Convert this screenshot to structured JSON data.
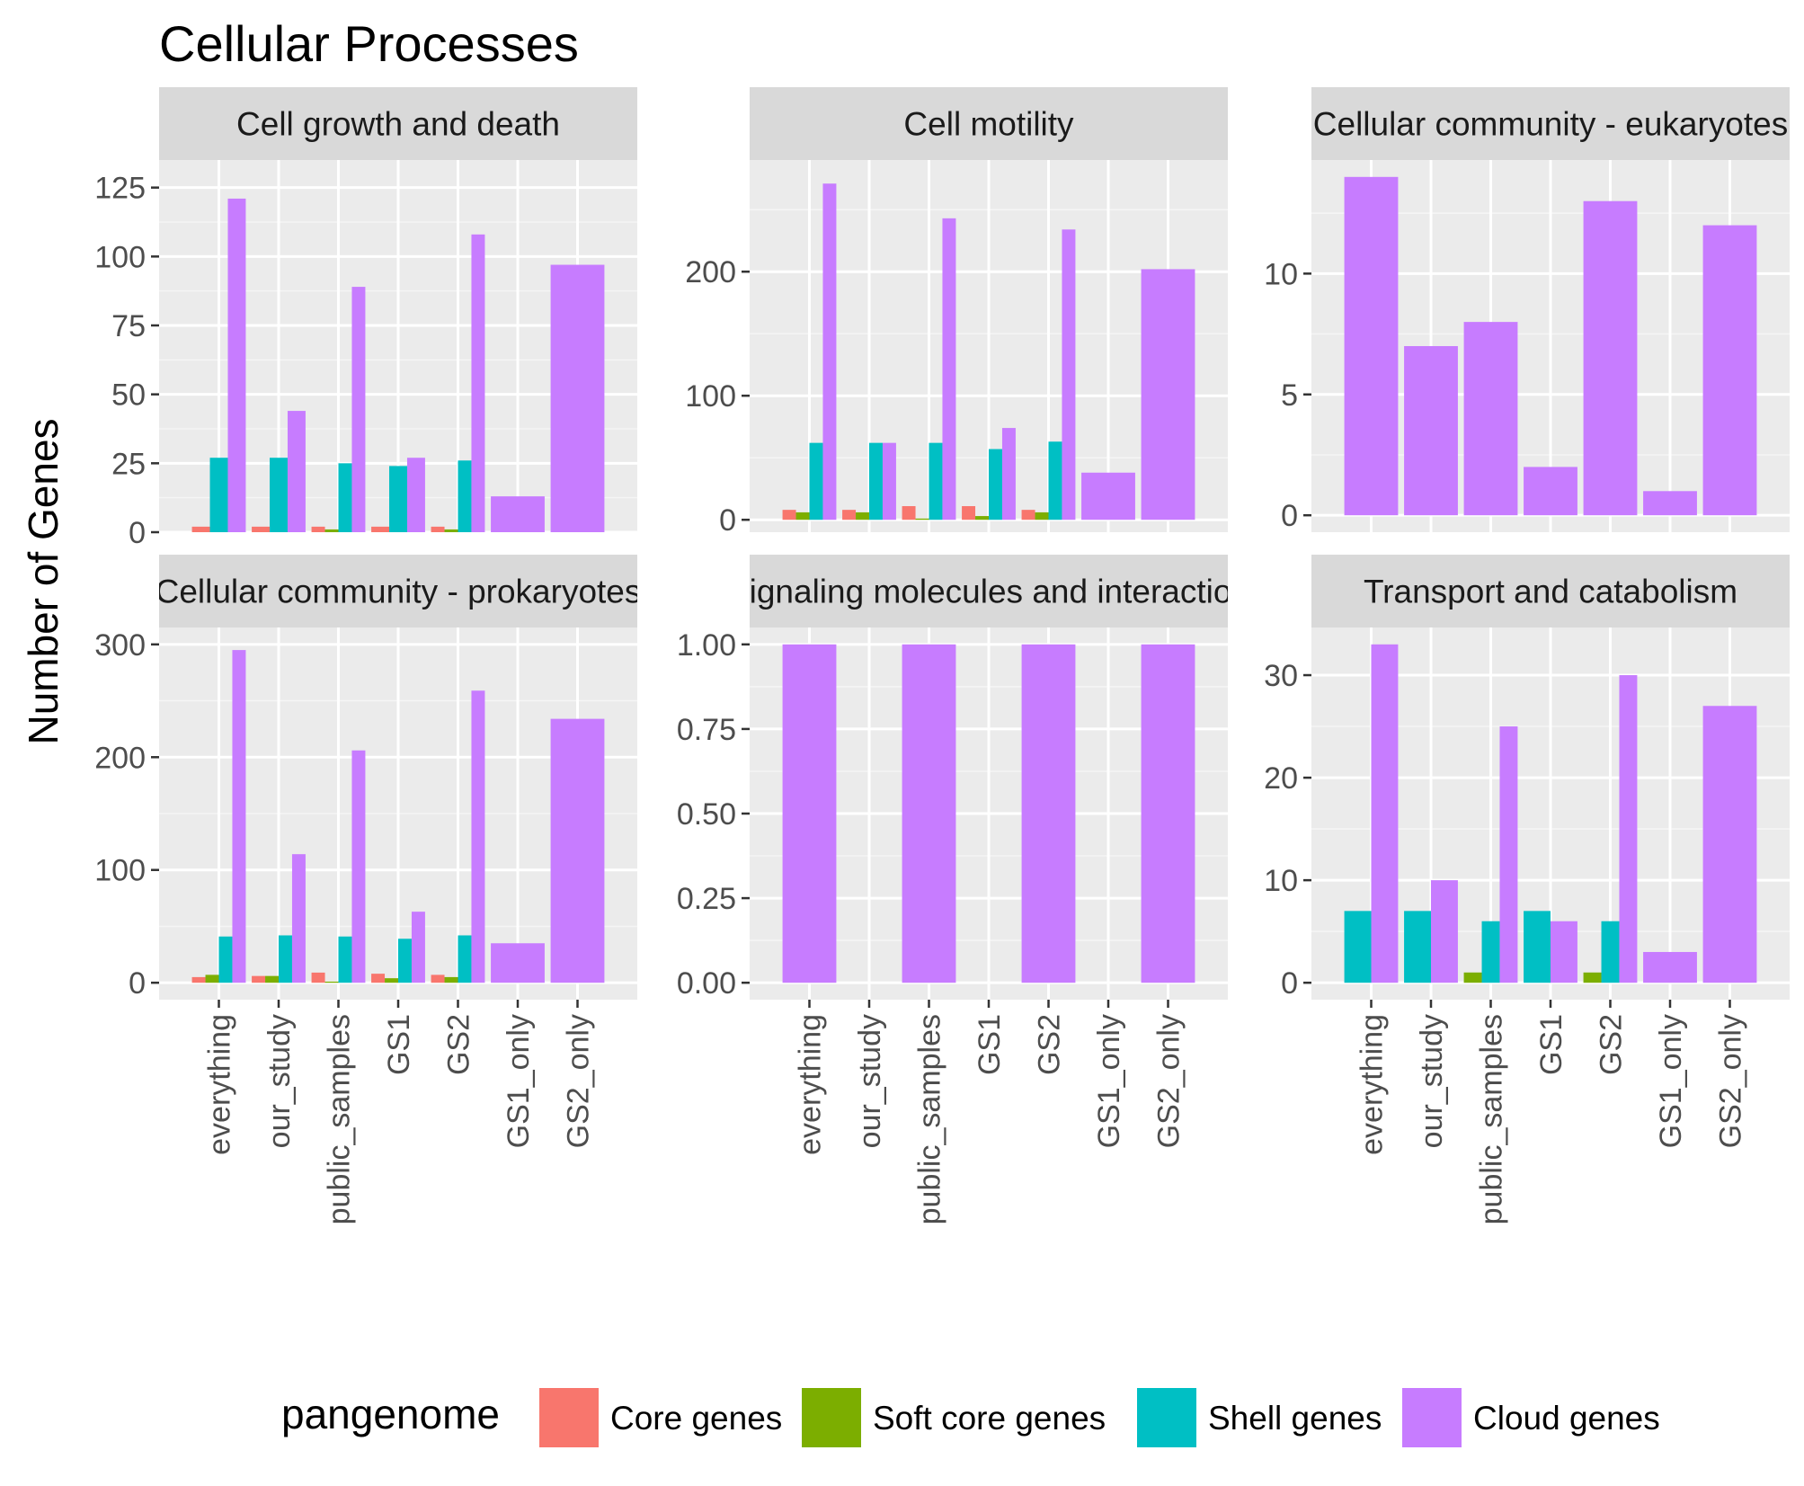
{
  "chart_data": {
    "type": "bar",
    "title": "Cellular Processes",
    "ylabel": "Number of Genes",
    "xlabel": "",
    "categories": [
      "everything",
      "our_study",
      "public_samples",
      "GS1",
      "GS2",
      "GS1_only",
      "GS2_only"
    ],
    "legend": {
      "title": "pangenome",
      "position": "bottom",
      "entries": [
        {
          "name": "Core genes",
          "color": "#F8766D"
        },
        {
          "name": "Soft core genes",
          "color": "#7CAE00"
        },
        {
          "name": "Shell genes",
          "color": "#00BFC4"
        },
        {
          "name": "Cloud genes",
          "color": "#C77CFF"
        }
      ]
    },
    "grid": true,
    "facets": [
      {
        "title": "Cell growth and death",
        "ylim": [
          0,
          135
        ],
        "yticks": [
          0,
          25,
          50,
          75,
          100,
          125
        ],
        "ytick_labels": [
          "0",
          "25",
          "50",
          "75",
          "100",
          "125"
        ],
        "bars": {
          "everything": [
            [
              "Core genes",
              2
            ],
            [
              "Shell genes",
              27
            ],
            [
              "Cloud genes",
              121
            ]
          ],
          "our_study": [
            [
              "Core genes",
              2
            ],
            [
              "Shell genes",
              27
            ],
            [
              "Cloud genes",
              44
            ]
          ],
          "public_samples": [
            [
              "Core genes",
              2
            ],
            [
              "Soft core genes",
              1
            ],
            [
              "Shell genes",
              25
            ],
            [
              "Cloud genes",
              89
            ]
          ],
          "GS1": [
            [
              "Core genes",
              2
            ],
            [
              "Shell genes",
              24
            ],
            [
              "Cloud genes",
              27
            ]
          ],
          "GS2": [
            [
              "Core genes",
              2
            ],
            [
              "Soft core genes",
              1
            ],
            [
              "Shell genes",
              26
            ],
            [
              "Cloud genes",
              108
            ]
          ],
          "GS1_only": [
            [
              "Cloud genes",
              13
            ]
          ],
          "GS2_only": [
            [
              "Cloud genes",
              97
            ]
          ]
        }
      },
      {
        "title": "Cell motility",
        "ylim": [
          -10,
          290
        ],
        "yticks": [
          0,
          100,
          200
        ],
        "ytick_labels": [
          "0",
          "100",
          "200"
        ],
        "bars": {
          "everything": [
            [
              "Core genes",
              8
            ],
            [
              "Soft core genes",
              6
            ],
            [
              "Shell genes",
              62
            ],
            [
              "Cloud genes",
              271
            ]
          ],
          "our_study": [
            [
              "Core genes",
              8
            ],
            [
              "Soft core genes",
              6
            ],
            [
              "Shell genes",
              62
            ],
            [
              "Cloud genes",
              62
            ]
          ],
          "public_samples": [
            [
              "Core genes",
              11
            ],
            [
              "Soft core genes",
              1
            ],
            [
              "Shell genes",
              62
            ],
            [
              "Cloud genes",
              243
            ]
          ],
          "GS1": [
            [
              "Core genes",
              11
            ],
            [
              "Soft core genes",
              3
            ],
            [
              "Shell genes",
              57
            ],
            [
              "Cloud genes",
              74
            ]
          ],
          "GS2": [
            [
              "Core genes",
              8
            ],
            [
              "Soft core genes",
              6
            ],
            [
              "Shell genes",
              63
            ],
            [
              "Cloud genes",
              234
            ]
          ],
          "GS1_only": [
            [
              "Cloud genes",
              38
            ]
          ],
          "GS2_only": [
            [
              "Cloud genes",
              202
            ]
          ]
        }
      },
      {
        "title": "Cellular community - eukaryotes",
        "ylim": [
          -0.7,
          14.7
        ],
        "yticks": [
          0,
          5,
          10
        ],
        "ytick_labels": [
          "0",
          "5",
          "10"
        ],
        "bars": {
          "everything": [
            [
              "Cloud genes",
              14
            ]
          ],
          "our_study": [
            [
              "Cloud genes",
              7
            ]
          ],
          "public_samples": [
            [
              "Cloud genes",
              8
            ]
          ],
          "GS1": [
            [
              "Cloud genes",
              2
            ]
          ],
          "GS2": [
            [
              "Cloud genes",
              13
            ]
          ],
          "GS1_only": [
            [
              "Cloud genes",
              1
            ]
          ],
          "GS2_only": [
            [
              "Cloud genes",
              12
            ]
          ]
        }
      },
      {
        "title": "Cellular community - prokaryotes",
        "ylim": [
          -15,
          315
        ],
        "yticks": [
          0,
          100,
          200,
          300
        ],
        "ytick_labels": [
          "0",
          "100",
          "200",
          "300"
        ],
        "bars": {
          "everything": [
            [
              "Core genes",
              5
            ],
            [
              "Soft core genes",
              7
            ],
            [
              "Shell genes",
              41
            ],
            [
              "Cloud genes",
              295
            ]
          ],
          "our_study": [
            [
              "Core genes",
              6
            ],
            [
              "Soft core genes",
              6
            ],
            [
              "Shell genes",
              42
            ],
            [
              "Cloud genes",
              114
            ]
          ],
          "public_samples": [
            [
              "Core genes",
              9
            ],
            [
              "Soft core genes",
              1
            ],
            [
              "Shell genes",
              41
            ],
            [
              "Cloud genes",
              206
            ]
          ],
          "GS1": [
            [
              "Core genes",
              8
            ],
            [
              "Soft core genes",
              4
            ],
            [
              "Shell genes",
              39
            ],
            [
              "Cloud genes",
              63
            ]
          ],
          "GS2": [
            [
              "Core genes",
              7
            ],
            [
              "Soft core genes",
              5
            ],
            [
              "Shell genes",
              42
            ],
            [
              "Cloud genes",
              259
            ]
          ],
          "GS1_only": [
            [
              "Cloud genes",
              35
            ]
          ],
          "GS2_only": [
            [
              "Cloud genes",
              234
            ]
          ]
        }
      },
      {
        "title": "Signaling molecules and interaction",
        "ylim": [
          -0.05,
          1.05
        ],
        "yticks": [
          0,
          0.25,
          0.5,
          0.75,
          1.0
        ],
        "ytick_labels": [
          "0.00",
          "0.25",
          "0.50",
          "0.75",
          "1.00"
        ],
        "bars": {
          "everything": [
            [
              "Cloud genes",
              1
            ]
          ],
          "our_study": [],
          "public_samples": [
            [
              "Cloud genes",
              1
            ]
          ],
          "GS1": [],
          "GS2": [
            [
              "Cloud genes",
              1
            ]
          ],
          "GS1_only": [],
          "GS2_only": [
            [
              "Cloud genes",
              1
            ]
          ]
        }
      },
      {
        "title": "Transport and catabolism",
        "ylim": [
          -1.65,
          34.65
        ],
        "yticks": [
          0,
          10,
          20,
          30
        ],
        "ytick_labels": [
          "0",
          "10",
          "20",
          "30"
        ],
        "bars": {
          "everything": [
            [
              "Shell genes",
              7
            ],
            [
              "Cloud genes",
              33
            ]
          ],
          "our_study": [
            [
              "Shell genes",
              7
            ],
            [
              "Cloud genes",
              10
            ]
          ],
          "public_samples": [
            [
              "Soft core genes",
              1
            ],
            [
              "Shell genes",
              6
            ],
            [
              "Cloud genes",
              25
            ]
          ],
          "GS1": [
            [
              "Shell genes",
              7
            ],
            [
              "Cloud genes",
              6
            ]
          ],
          "GS2": [
            [
              "Soft core genes",
              1
            ],
            [
              "Shell genes",
              6
            ],
            [
              "Cloud genes",
              30
            ]
          ],
          "GS1_only": [
            [
              "Cloud genes",
              3
            ]
          ],
          "GS2_only": [
            [
              "Cloud genes",
              27
            ]
          ]
        }
      }
    ]
  }
}
